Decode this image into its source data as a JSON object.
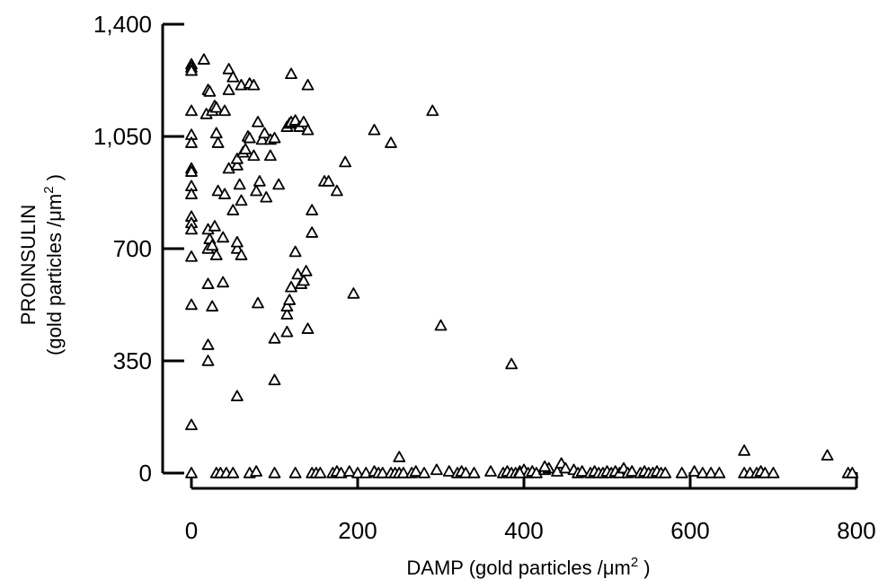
{
  "chart_data": {
    "type": "scatter",
    "title": "",
    "xlabel_prefix": "DAMP (gold particles /",
    "xlabel_unit": "μm",
    "xlabel_sup": "2",
    "xlabel_suffix": ")",
    "ylabel_line1": "PROINSULIN",
    "ylabel_line2_prefix": "(gold particles /",
    "ylabel_line2_unit": "μm",
    "ylabel_line2_sup": "2",
    "ylabel_line2_suffix": ")",
    "xlim": [
      0,
      800
    ],
    "ylim": [
      0,
      1400
    ],
    "xticks": [
      0,
      200,
      400,
      600,
      800
    ],
    "xtick_labels": [
      "0",
      "200",
      "400",
      "600",
      "800"
    ],
    "yticks": [
      0,
      350,
      700,
      1050,
      1400
    ],
    "ytick_labels": [
      "0",
      "350",
      "700",
      "1,050",
      "1,400"
    ],
    "grid": false,
    "marker": "open-triangle",
    "series": [
      {
        "points": [
          [
            0,
            1275
          ],
          [
            0,
            1265
          ],
          [
            0,
            1255
          ],
          [
            0,
            1130
          ],
          [
            0,
            1055
          ],
          [
            0,
            1030
          ],
          [
            0,
            950
          ],
          [
            0,
            940
          ],
          [
            0,
            895
          ],
          [
            0,
            870
          ],
          [
            0,
            800
          ],
          [
            0,
            780
          ],
          [
            0,
            760
          ],
          [
            0,
            675
          ],
          [
            0,
            525
          ],
          [
            0,
            150
          ],
          [
            15,
            1290
          ],
          [
            18,
            1120
          ],
          [
            20,
            1195
          ],
          [
            22,
            1190
          ],
          [
            25,
            1130
          ],
          [
            28,
            1145
          ],
          [
            30,
            1140
          ],
          [
            30,
            1060
          ],
          [
            32,
            1030
          ],
          [
            40,
            1130
          ],
          [
            45,
            1260
          ],
          [
            45,
            1195
          ],
          [
            50,
            1235
          ],
          [
            60,
            1210
          ],
          [
            70,
            1215
          ],
          [
            75,
            1210
          ],
          [
            20,
            760
          ],
          [
            20,
            700
          ],
          [
            22,
            730
          ],
          [
            25,
            710
          ],
          [
            28,
            770
          ],
          [
            30,
            680
          ],
          [
            32,
            880
          ],
          [
            38,
            735
          ],
          [
            40,
            870
          ],
          [
            45,
            950
          ],
          [
            50,
            820
          ],
          [
            55,
            960
          ],
          [
            55,
            980
          ],
          [
            58,
            900
          ],
          [
            60,
            850
          ],
          [
            62,
            1000
          ],
          [
            65,
            1010
          ],
          [
            68,
            1050
          ],
          [
            70,
            1045
          ],
          [
            75,
            990
          ],
          [
            78,
            880
          ],
          [
            80,
            1095
          ],
          [
            82,
            910
          ],
          [
            85,
            1040
          ],
          [
            88,
            1060
          ],
          [
            90,
            860
          ],
          [
            95,
            990
          ],
          [
            95,
            1040
          ],
          [
            100,
            1045
          ],
          [
            105,
            900
          ],
          [
            20,
            590
          ],
          [
            25,
            520
          ],
          [
            20,
            400
          ],
          [
            20,
            350
          ],
          [
            38,
            595
          ],
          [
            55,
            240
          ],
          [
            55,
            700
          ],
          [
            55,
            720
          ],
          [
            60,
            680
          ],
          [
            80,
            530
          ],
          [
            100,
            420
          ],
          [
            100,
            290
          ],
          [
            115,
            440
          ],
          [
            115,
            1080
          ],
          [
            118,
            1090
          ],
          [
            120,
            1095
          ],
          [
            120,
            1245
          ],
          [
            125,
            1100
          ],
          [
            130,
            1080
          ],
          [
            135,
            1095
          ],
          [
            140,
            1070
          ],
          [
            140,
            1210
          ],
          [
            115,
            495
          ],
          [
            115,
            520
          ],
          [
            118,
            540
          ],
          [
            120,
            580
          ],
          [
            125,
            690
          ],
          [
            128,
            620
          ],
          [
            132,
            590
          ],
          [
            135,
            600
          ],
          [
            138,
            630
          ],
          [
            140,
            450
          ],
          [
            145,
            750
          ],
          [
            145,
            820
          ],
          [
            160,
            910
          ],
          [
            165,
            910
          ],
          [
            175,
            880
          ],
          [
            185,
            970
          ],
          [
            195,
            560
          ],
          [
            220,
            1070
          ],
          [
            240,
            1030
          ],
          [
            290,
            1130
          ],
          [
            300,
            460
          ],
          [
            385,
            340
          ],
          [
            0,
            0
          ],
          [
            30,
            0
          ],
          [
            35,
            0
          ],
          [
            42,
            0
          ],
          [
            50,
            0
          ],
          [
            70,
            0
          ],
          [
            78,
            5
          ],
          [
            100,
            0
          ],
          [
            125,
            0
          ],
          [
            145,
            0
          ],
          [
            150,
            0
          ],
          [
            155,
            0
          ],
          [
            170,
            0
          ],
          [
            175,
            5
          ],
          [
            180,
            0
          ],
          [
            190,
            5
          ],
          [
            200,
            0
          ],
          [
            210,
            0
          ],
          [
            220,
            5
          ],
          [
            225,
            0
          ],
          [
            230,
            0
          ],
          [
            240,
            0
          ],
          [
            245,
            0
          ],
          [
            250,
            0
          ],
          [
            255,
            0
          ],
          [
            265,
            0
          ],
          [
            270,
            5
          ],
          [
            280,
            0
          ],
          [
            295,
            10
          ],
          [
            310,
            5
          ],
          [
            320,
            0
          ],
          [
            325,
            5
          ],
          [
            330,
            0
          ],
          [
            340,
            0
          ],
          [
            360,
            5
          ],
          [
            375,
            0
          ],
          [
            380,
            5
          ],
          [
            385,
            0
          ],
          [
            390,
            0
          ],
          [
            395,
            5
          ],
          [
            400,
            10
          ],
          [
            405,
            0
          ],
          [
            410,
            5
          ],
          [
            415,
            0
          ],
          [
            425,
            10
          ],
          [
            430,
            15
          ],
          [
            440,
            5
          ],
          [
            445,
            30
          ],
          [
            450,
            15
          ],
          [
            460,
            10
          ],
          [
            465,
            0
          ],
          [
            470,
            5
          ],
          [
            480,
            0
          ],
          [
            485,
            5
          ],
          [
            490,
            0
          ],
          [
            495,
            0
          ],
          [
            500,
            5
          ],
          [
            505,
            0
          ],
          [
            510,
            5
          ],
          [
            515,
            0
          ],
          [
            520,
            15
          ],
          [
            525,
            0
          ],
          [
            530,
            5
          ],
          [
            540,
            0
          ],
          [
            545,
            5
          ],
          [
            550,
            0
          ],
          [
            555,
            0
          ],
          [
            560,
            5
          ],
          [
            565,
            0
          ],
          [
            570,
            0
          ],
          [
            590,
            0
          ],
          [
            605,
            5
          ],
          [
            615,
            0
          ],
          [
            625,
            0
          ],
          [
            635,
            0
          ],
          [
            665,
            0
          ],
          [
            672,
            0
          ],
          [
            680,
            0
          ],
          [
            685,
            5
          ],
          [
            690,
            0
          ],
          [
            700,
            0
          ],
          [
            790,
            0
          ],
          [
            795,
            0
          ],
          [
            250,
            50
          ],
          [
            425,
            20
          ],
          [
            665,
            70
          ],
          [
            765,
            55
          ],
          [
            395,
            0
          ]
        ]
      }
    ]
  }
}
